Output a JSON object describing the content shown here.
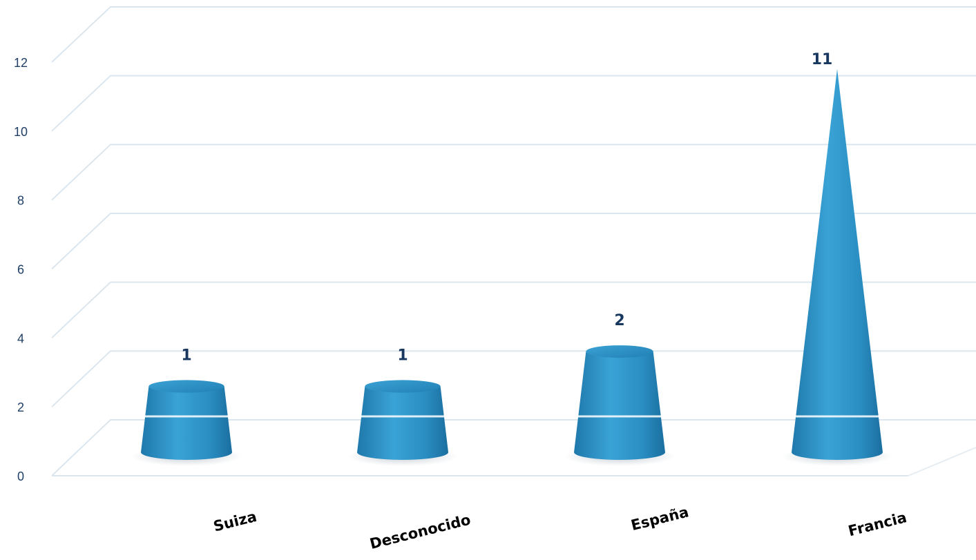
{
  "chart_data": {
    "type": "bar",
    "shape": "cone",
    "categories": [
      "Suiza",
      "Desconocido",
      "España",
      "Francia"
    ],
    "values": [
      1,
      1,
      2,
      11
    ],
    "data_labels": [
      "1",
      "1",
      "2",
      "11"
    ],
    "ylim": [
      0,
      12
    ],
    "yticks": [
      "0",
      "2",
      "4",
      "6",
      "8",
      "10",
      "12"
    ],
    "grid": true,
    "legend": "none",
    "bar_color": "#2a8ec2",
    "label_color": "#17375e"
  }
}
